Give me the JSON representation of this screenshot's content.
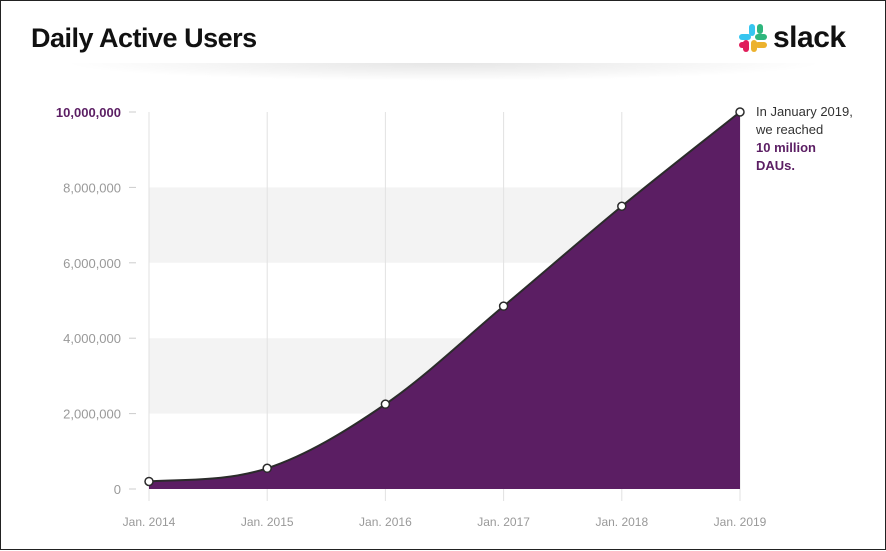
{
  "header": {
    "title": "Daily Active Users",
    "logo_text": "slack"
  },
  "annotation": {
    "line1": "In January 2019,",
    "line2": "we reached",
    "highlight1": "10 million",
    "highlight2": "DAUs."
  },
  "colors": {
    "area": "#5b1e63",
    "line": "#2b2b2b",
    "band": "#f3f3f3",
    "highlight_tick": "#5b1e63",
    "tick": "#999999"
  },
  "chart_data": {
    "type": "area",
    "title": "Daily Active Users",
    "categories": [
      "Jan. 2014",
      "Jan. 2015",
      "Jan. 2016",
      "Jan. 2017",
      "Jan. 2018",
      "Jan. 2019"
    ],
    "values": [
      200000,
      550000,
      2250000,
      4850000,
      7500000,
      10000000
    ],
    "ylim": [
      0,
      10000000
    ],
    "yticks": [
      0,
      2000000,
      4000000,
      6000000,
      8000000,
      10000000
    ],
    "ytick_labels": [
      "0",
      "2,000,000",
      "4,000,000",
      "6,000,000",
      "8,000,000",
      "10,000,000"
    ],
    "grid": "vertical lines with alternating horizontal bands",
    "legend": "none"
  }
}
